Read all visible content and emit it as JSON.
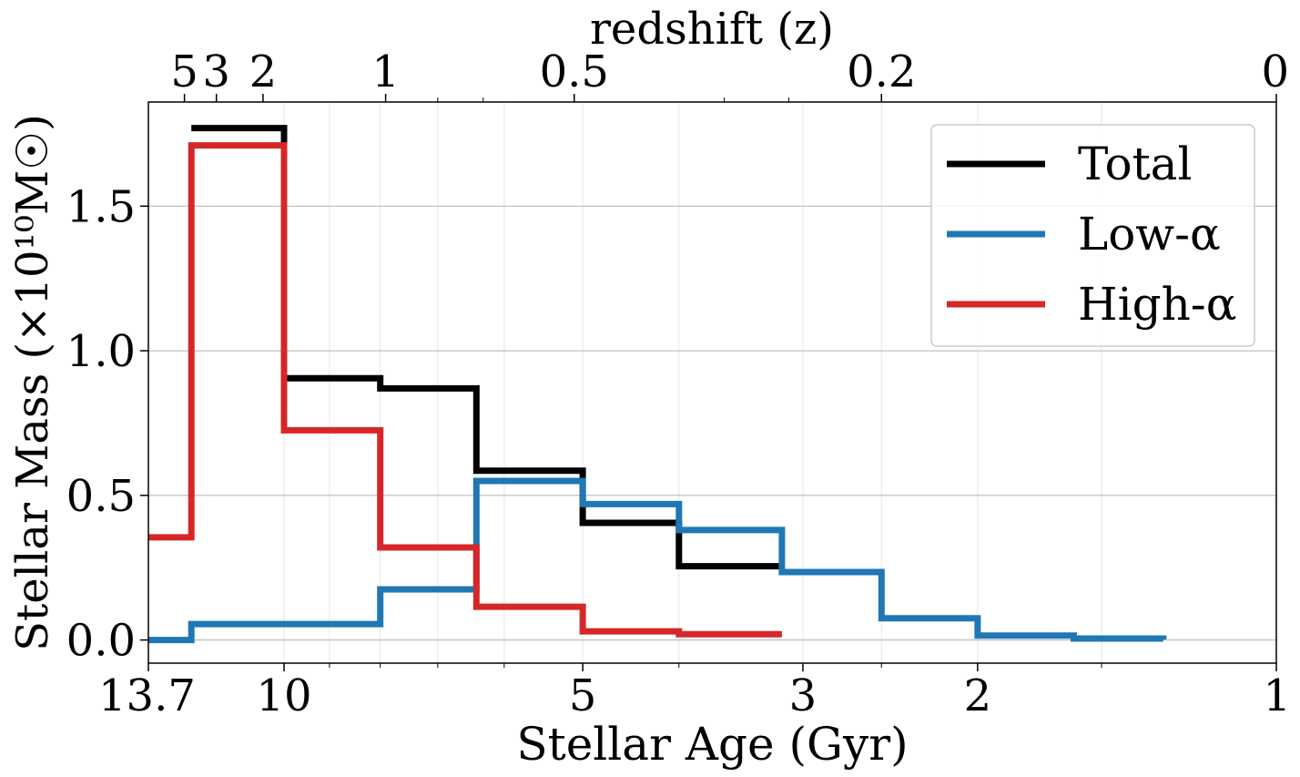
{
  "chart_data": {
    "type": "line",
    "xlabel": "Stellar Age (Gyr)",
    "ylabel": "Stellar Mass (×10¹⁰M☉)",
    "top_xlabel": "redshift (z)",
    "x_scale": "log",
    "x_reversed": true,
    "xlim": [
      13.7,
      1
    ],
    "ylim": [
      -0.08,
      1.86
    ],
    "grid": true,
    "legend": "top-right",
    "x_ticks": [
      {
        "value": 13.7,
        "label": "13.7"
      },
      {
        "value": 10,
        "label": "10"
      },
      {
        "value": 5,
        "label": "5"
      },
      {
        "value": 3,
        "label": "3"
      },
      {
        "value": 2,
        "label": "2"
      },
      {
        "value": 1,
        "label": "1"
      }
    ],
    "x_minor_ticks": [
      9,
      8,
      7,
      6,
      4,
      2.5,
      1.5
    ],
    "y_ticks": [
      {
        "value": 0.0,
        "label": "0.0"
      },
      {
        "value": 0.5,
        "label": "0.5"
      },
      {
        "value": 1.0,
        "label": "1.0"
      },
      {
        "value": 1.5,
        "label": "1.5"
      }
    ],
    "top_ticks": [
      {
        "age": 12.6,
        "label": "5"
      },
      {
        "age": 11.7,
        "label": "3"
      },
      {
        "age": 10.5,
        "label": "2"
      },
      {
        "age": 7.9,
        "label": "1"
      },
      {
        "age": 5.1,
        "label": "0.5"
      },
      {
        "age": 2.5,
        "label": "0.2"
      },
      {
        "age": 1.0,
        "label": "0"
      }
    ],
    "top_minor_ticks": [
      7.0,
      6.3,
      3.6,
      3.1
    ],
    "series": [
      {
        "name": "Total",
        "color": "#000000",
        "edges": [
          12.4,
          10.0,
          8.0,
          6.4,
          5.0,
          4.0,
          3.15
        ],
        "values": [
          1.77,
          0.905,
          0.87,
          0.585,
          0.405,
          0.255
        ]
      },
      {
        "name": "Low-α",
        "color": "#1f77b4",
        "edges": [
          13.7,
          12.4,
          10.0,
          8.0,
          6.4,
          5.0,
          4.0,
          3.15,
          2.5,
          2.0,
          1.6,
          1.3
        ],
        "values": [
          0.0,
          0.055,
          0.055,
          0.175,
          0.55,
          0.47,
          0.38,
          0.235,
          0.075,
          0.015,
          0.005,
          0.002
        ]
      },
      {
        "name": "High-α",
        "color": "#d62728",
        "edges": [
          13.7,
          12.4,
          10.0,
          8.0,
          6.4,
          5.0,
          4.0,
          3.15
        ],
        "values": [
          0.355,
          1.71,
          0.725,
          0.32,
          0.115,
          0.03,
          0.02
        ]
      }
    ]
  }
}
